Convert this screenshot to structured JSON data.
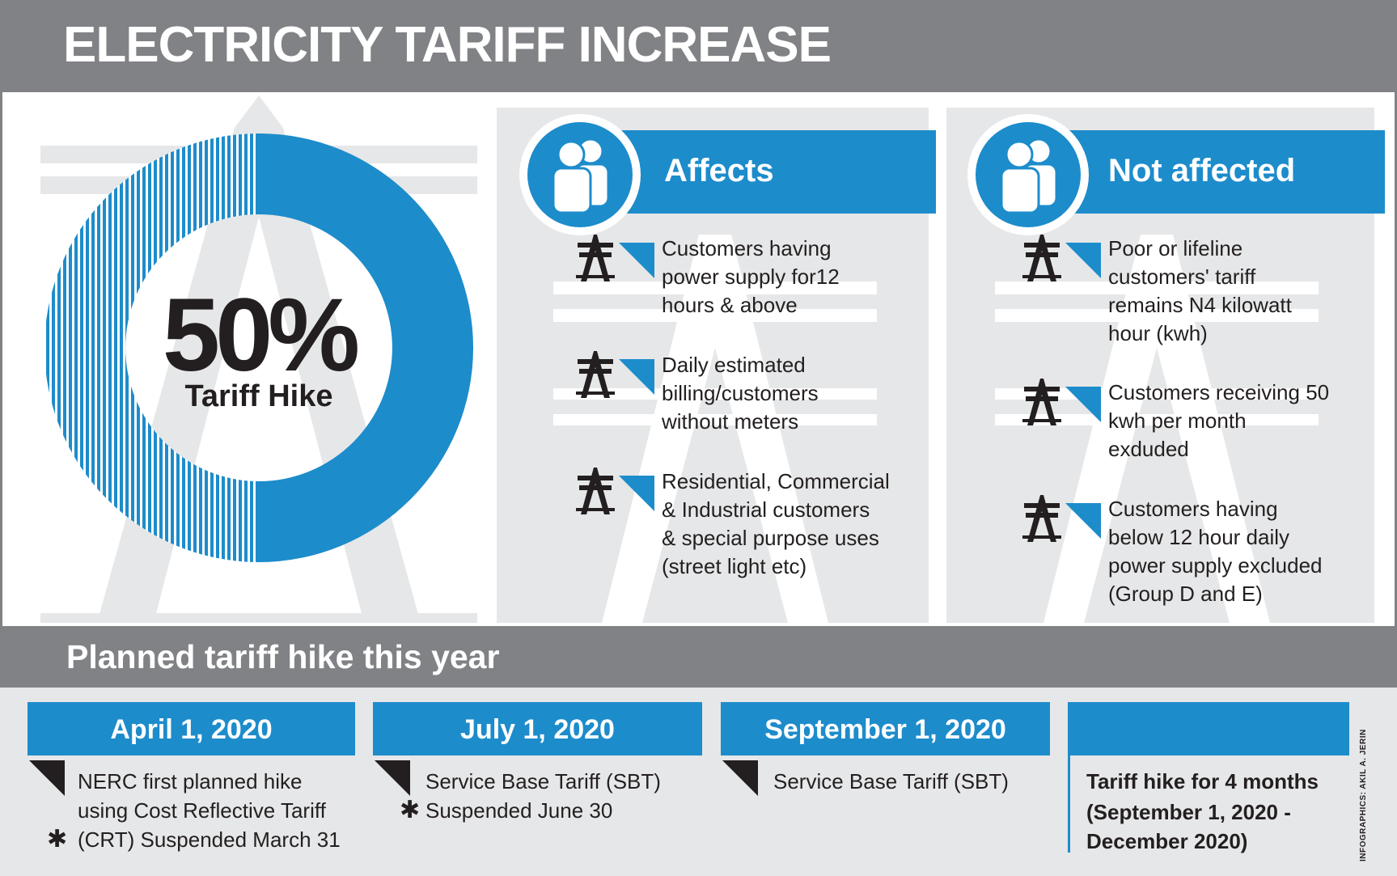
{
  "header": {
    "title": "ELECTRICITY TARIFF INCREASE"
  },
  "hike": {
    "percent_text": "50%",
    "label": "Tariff Hike",
    "fraction": 0.5,
    "accent": "#1d8ccb"
  },
  "affects": {
    "heading": "Affects",
    "icon": "people-icon",
    "items": [
      {
        "lines": [
          "Customers having",
          "power supply for12",
          "hours  & above"
        ]
      },
      {
        "lines": [
          "Daily estimated",
          "billing/customers",
          "without meters"
        ]
      },
      {
        "lines": [
          "Residential, Commercial",
          "& Industrial customers",
          "& special purpose uses",
          "(street light etc)"
        ]
      }
    ]
  },
  "not_affected": {
    "heading": "Not affected",
    "icon": "people-icon",
    "items": [
      {
        "lines": [
          "Poor or lifeline",
          "customers' tariff",
          "remains N4 kilowatt",
          "hour (kwh)"
        ]
      },
      {
        "lines": [
          "Customers receiving 50",
          "kwh per month",
          "exduded"
        ]
      },
      {
        "lines": [
          "Customers having",
          "below 12 hour daily",
          "power supply excluded",
          "(Group D and E)"
        ]
      }
    ]
  },
  "timeline": {
    "heading": "Planned tariff hike this year",
    "entries": [
      {
        "date": "April 1, 2020",
        "lines": [
          "NERC first planned hike",
          "using Cost Reflective Tariff",
          "(CRT) Suspended March 31"
        ]
      },
      {
        "date": "July 1, 2020",
        "lines": [
          "Service Base Tariff (SBT)",
          "Suspended June 30"
        ]
      },
      {
        "date": "September 1, 2020",
        "lines": [
          "Service Base Tariff (SBT)"
        ]
      }
    ],
    "summary_lines": [
      "Tariff hike for 4 months",
      "(September 1, 2020 -",
      "December 2020)"
    ]
  },
  "credit": "INFOGRAPHICS: AKIL A. JERIN",
  "colors": {
    "blue": "#1d8ccb",
    "grey": "#808285",
    "panel": "#e6e7e8",
    "dark": "#231f20"
  }
}
